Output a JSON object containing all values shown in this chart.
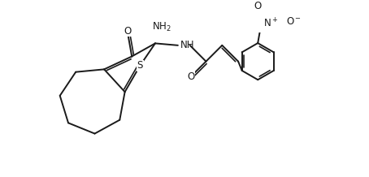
{
  "background_color": "#ffffff",
  "line_color": "#1a1a1a",
  "line_width": 1.4,
  "font_size": 8.5,
  "figsize": [
    4.54,
    2.18
  ],
  "dpi": 100,
  "xlim": [
    0,
    9.5
  ],
  "ylim": [
    0,
    4.5
  ]
}
